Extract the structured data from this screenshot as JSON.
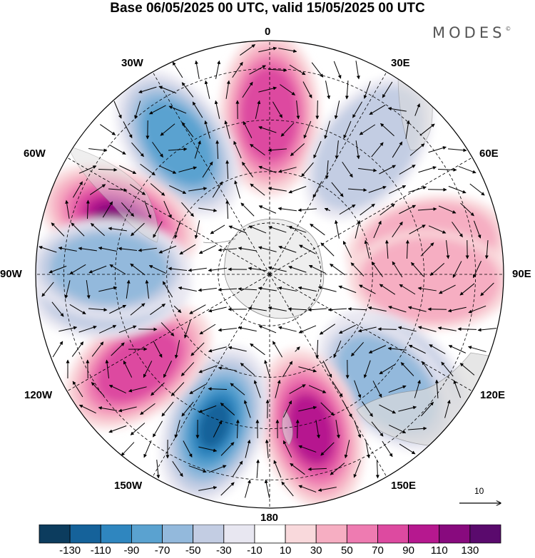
{
  "title": "Base 06/05/2025 00 UTC, valid 15/05/2025 00 UTC",
  "brand": "MODES",
  "brand_mark": "©",
  "longitude_labels": {
    "lon_0": "0",
    "lon_30e": "30E",
    "lon_60e": "60E",
    "lon_90e": "90E",
    "lon_120e": "120E",
    "lon_150e": "150E",
    "lon_180": "180",
    "lon_150w": "150W",
    "lon_120w": "120W",
    "lon_90w": "90W",
    "lon_60w": "60W",
    "lon_30w": "30W"
  },
  "reference_vector": {
    "label": "10"
  },
  "colorbar": {
    "labels": [
      "-130",
      "-110",
      "-90",
      "-70",
      "-50",
      "-30",
      "-10",
      "10",
      "30",
      "50",
      "70",
      "90",
      "110",
      "130"
    ],
    "colors": [
      "#0c3c5e",
      "#15629a",
      "#2f86bf",
      "#5aa2d0",
      "#93b9dc",
      "#c3cde3",
      "#e8e7f1",
      "#ffffff",
      "#f9d9dc",
      "#f6aec2",
      "#ee7bb1",
      "#dd4aa0",
      "#b6188f",
      "#880a7e",
      "#5a0a6d"
    ]
  },
  "anomaly_centers": [
    {
      "lon": 0,
      "value": 75
    },
    {
      "lon": -35,
      "value": -75
    },
    {
      "lon": -70,
      "value": 120
    },
    {
      "lon": 38,
      "value": -35
    },
    {
      "lon": 80,
      "value": 45
    },
    {
      "lon": 92,
      "value": 35
    },
    {
      "lon": 128,
      "value": -45
    },
    {
      "lon": 133,
      "value": -50
    },
    {
      "lon": 165,
      "value": 105
    },
    {
      "lon": -160,
      "value": -110
    },
    {
      "lon": -125,
      "value": 80
    },
    {
      "lon": -95,
      "value": -40
    },
    {
      "lon": -88,
      "value": -55
    }
  ]
}
